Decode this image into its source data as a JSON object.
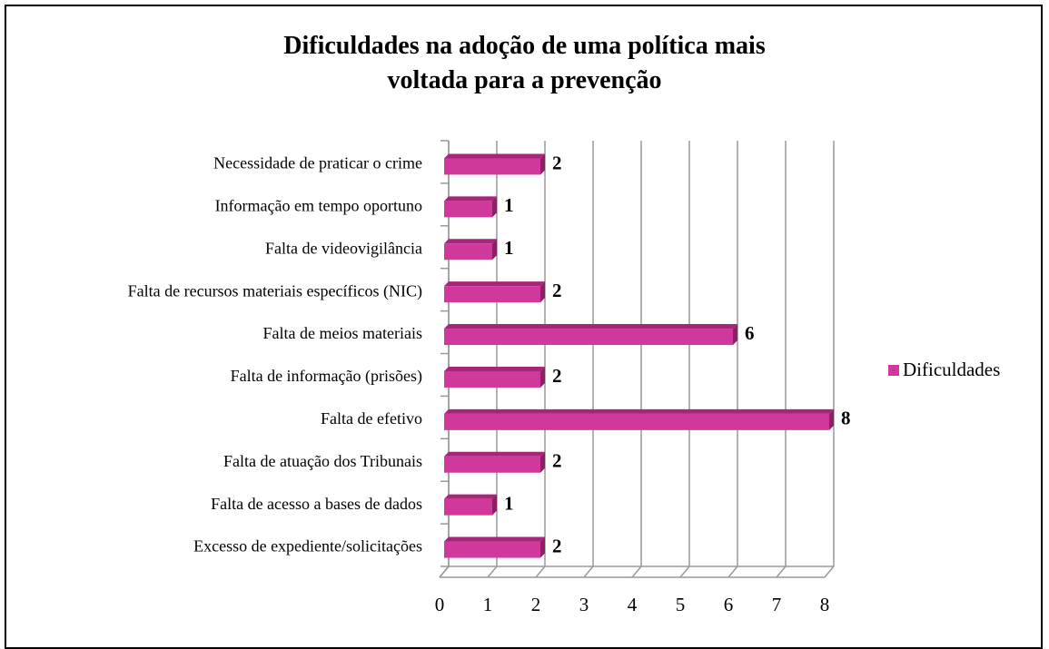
{
  "chart_data": {
    "type": "bar3d",
    "title": "Dificuldades na adoção de uma política mais voltada para a prevenção",
    "categories": [
      "Necessidade de praticar o crime",
      "Informação em tempo oportuno",
      "Falta de videovigilância",
      "Falta de recursos materiais específicos (NIC)",
      "Falta de meios materiais",
      "Falta de informação (prisões)",
      "Falta de efetivo",
      "Falta de atuação dos Tribunais",
      "Falta de acesso a bases de dados",
      "Excesso de expediente/solicitações"
    ],
    "series": [
      {
        "name": "Dificuldades",
        "color": "#d0389c",
        "values": [
          2,
          1,
          1,
          2,
          6,
          2,
          8,
          2,
          1,
          2
        ]
      }
    ],
    "xlim": [
      0,
      8
    ],
    "xticks": [
      0,
      1,
      2,
      3,
      4,
      5,
      6,
      7,
      8
    ],
    "grid": true,
    "legend": "right"
  }
}
